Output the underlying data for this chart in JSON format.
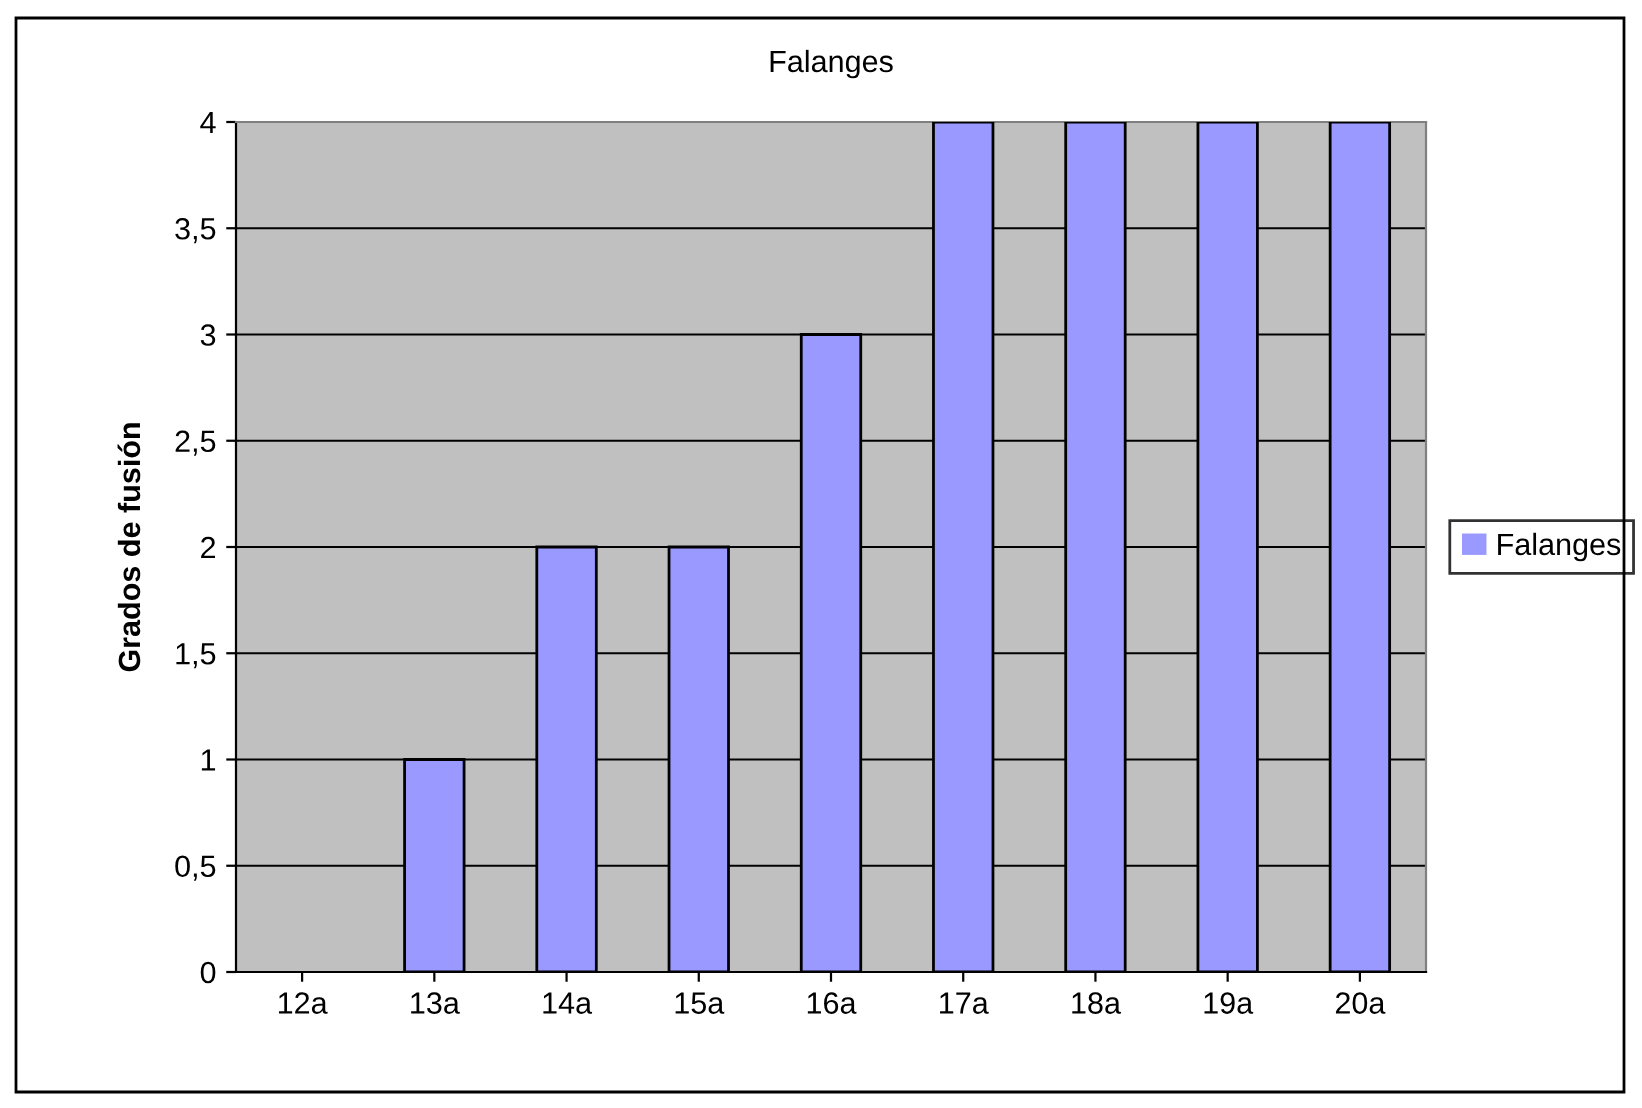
{
  "chart_data": {
    "type": "bar",
    "title": "Falanges",
    "ylabel": "Grados de fusión",
    "categories": [
      "12a",
      "13a",
      "14a",
      "15a",
      "16a",
      "17a",
      "18a",
      "19a",
      "20a"
    ],
    "series": [
      {
        "name": "Falanges",
        "color": "#9999ff",
        "values": [
          0,
          1,
          2,
          2,
          3,
          4,
          4,
          4,
          4
        ]
      }
    ],
    "ylim": [
      0,
      4
    ],
    "yticks": [
      0,
      {
        "value": 0.5,
        "label": "0,5"
      },
      1,
      {
        "value": 1.5,
        "label": "1,5"
      },
      2,
      {
        "value": 2.5,
        "label": "2,5"
      },
      3,
      {
        "value": 3.5,
        "label": "3,5"
      },
      4
    ],
    "grid": "y",
    "legend": "right"
  }
}
